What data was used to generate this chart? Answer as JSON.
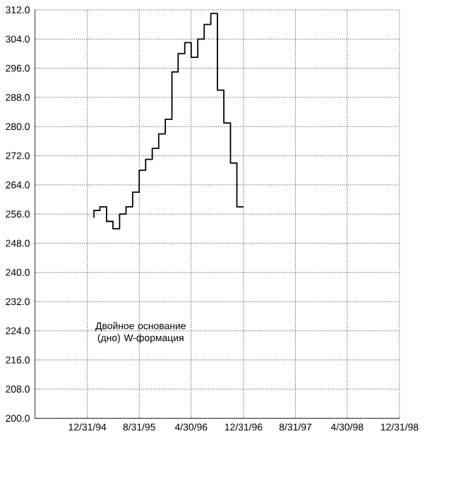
{
  "chart_data": {
    "type": "step",
    "x": [
      "1995-01-31",
      "1995-02-28",
      "1995-03-31",
      "1995-04-30",
      "1995-05-31",
      "1995-06-30",
      "1995-07-31",
      "1995-08-31",
      "1995-09-30",
      "1995-10-31",
      "1995-11-30",
      "1995-12-31",
      "1996-01-31",
      "1996-02-29",
      "1996-03-31",
      "1996-04-30",
      "1996-05-31",
      "1996-06-30",
      "1996-07-31",
      "1996-08-31",
      "1996-09-30",
      "1996-10-31",
      "1996-11-30",
      "1996-12-31"
    ],
    "series": [
      {
        "color": "#000000",
        "values": [
          255,
          257,
          258,
          254,
          252,
          256,
          258,
          262,
          268,
          271,
          274,
          278,
          282,
          295,
          300,
          303,
          299,
          304,
          308,
          311,
          290,
          281,
          270,
          258
        ]
      }
    ],
    "xlim": [
      "1994-04-30",
      "1998-12-31"
    ],
    "xticks": [
      {
        "value": "1994-12-31",
        "label": "12/31/94"
      },
      {
        "value": "1995-08-31",
        "label": "8/31/95"
      },
      {
        "value": "1996-04-30",
        "label": "4/30/96"
      },
      {
        "value": "1996-12-31",
        "label": "12/31/96"
      },
      {
        "value": "1997-08-31",
        "label": "8/31/97"
      },
      {
        "value": "1998-04-30",
        "label": "4/30/98"
      },
      {
        "value": "1998-12-31",
        "label": "12/31/98"
      }
    ],
    "ylim": [
      200,
      312
    ],
    "yticks": [
      {
        "value": 200,
        "label": "200.0"
      },
      {
        "value": 208,
        "label": "208.0"
      },
      {
        "value": 216,
        "label": "216.0"
      },
      {
        "value": 224,
        "label": "224.0"
      },
      {
        "value": 232,
        "label": "232.0"
      },
      {
        "value": 240,
        "label": "240.0"
      },
      {
        "value": 248,
        "label": "248.0"
      },
      {
        "value": 256,
        "label": "256.0"
      },
      {
        "value": 264,
        "label": "264.0"
      },
      {
        "value": 272,
        "label": "272.0"
      },
      {
        "value": 280,
        "label": "280.0"
      },
      {
        "value": 288,
        "label": "288.0"
      },
      {
        "value": 296,
        "label": "296.0"
      },
      {
        "value": 304,
        "label": "304.0"
      },
      {
        "value": 312,
        "label": "312.0"
      }
    ],
    "grid": true,
    "annotations": [
      "Двойное основание (дно) W-формация"
    ]
  }
}
